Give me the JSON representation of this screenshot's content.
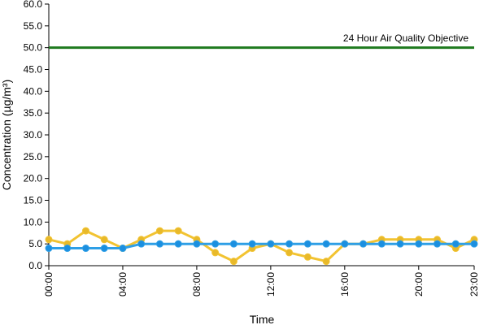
{
  "chart_data": {
    "type": "line",
    "title": "",
    "xlabel": "Time",
    "ylabel": "Concentration (µg/m³)",
    "ylim": [
      0,
      60
    ],
    "yticks": [
      "0.0",
      "5.0",
      "10.0",
      "15.0",
      "20.0",
      "25.0",
      "30.0",
      "35.0",
      "40.0",
      "45.0",
      "50.0",
      "55.0",
      "60.0"
    ],
    "xticks": [
      "00:00",
      "04:00",
      "08:00",
      "12:00",
      "16:00",
      "20:00",
      "23:00"
    ],
    "xtick_hours": [
      0,
      4,
      8,
      12,
      16,
      20,
      23
    ],
    "x": [
      "00:00",
      "01:00",
      "02:00",
      "03:00",
      "04:00",
      "05:00",
      "06:00",
      "07:00",
      "08:00",
      "09:00",
      "10:00",
      "11:00",
      "12:00",
      "13:00",
      "14:00",
      "15:00",
      "16:00",
      "17:00",
      "18:00",
      "19:00",
      "20:00",
      "21:00",
      "22:00",
      "23:00"
    ],
    "series": [
      {
        "color": "#f2c331",
        "marker_color": "#e8b92a",
        "values": [
          6,
          5,
          8,
          6,
          4,
          6,
          8,
          8,
          6,
          3,
          1,
          4,
          5,
          3,
          2,
          1,
          5,
          5,
          6,
          6,
          6,
          6,
          4,
          6
        ]
      },
      {
        "color": "#2e9fe6",
        "marker_color": "#1b8fe0",
        "values": [
          4,
          4,
          4,
          4,
          4,
          5,
          5,
          5,
          5,
          5,
          5,
          5,
          5,
          5,
          5,
          5,
          5,
          5,
          5,
          5,
          5,
          5,
          5,
          5
        ]
      }
    ],
    "reference_line": {
      "value": 50,
      "label": "24 Hour Air Quality Objective",
      "color": "#1e7a1e"
    },
    "grid": false,
    "legend": "none"
  }
}
